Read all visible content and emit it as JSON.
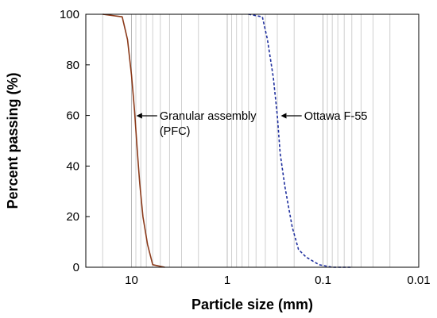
{
  "chart_data": {
    "type": "line",
    "xlabel": "Particle size (mm)",
    "ylabel": "Percent passing (%)",
    "x_scale": "log",
    "x_reversed": true,
    "xlim": [
      30,
      0.01
    ],
    "ylim": [
      0,
      100
    ],
    "x_ticks": [
      {
        "value": 10,
        "label": "10"
      },
      {
        "value": 1,
        "label": "1"
      },
      {
        "value": 0.1,
        "label": "0.1"
      },
      {
        "value": 0.01,
        "label": "0.01"
      }
    ],
    "y_ticks": [
      {
        "value": 0,
        "label": "0"
      },
      {
        "value": 20,
        "label": "20"
      },
      {
        "value": 40,
        "label": "40"
      },
      {
        "value": 60,
        "label": "60"
      },
      {
        "value": 80,
        "label": "80"
      },
      {
        "value": 100,
        "label": "100"
      }
    ],
    "grid": {
      "x": "log-minor",
      "y": false
    },
    "series": [
      {
        "name": "Granular assembly (PFC)",
        "color": "#8b3a1a",
        "style": "solid",
        "points": [
          {
            "x": 20,
            "y": 100
          },
          {
            "x": 12.5,
            "y": 99
          },
          {
            "x": 11,
            "y": 90
          },
          {
            "x": 10,
            "y": 76
          },
          {
            "x": 9.3,
            "y": 62
          },
          {
            "x": 8.7,
            "y": 46
          },
          {
            "x": 8.2,
            "y": 33
          },
          {
            "x": 7.6,
            "y": 20
          },
          {
            "x": 6.8,
            "y": 9
          },
          {
            "x": 6.0,
            "y": 1
          },
          {
            "x": 4.5,
            "y": 0
          }
        ]
      },
      {
        "name": "Ottawa F-55",
        "color": "#1f2f9e",
        "style": "dashed",
        "points": [
          {
            "x": 0.6,
            "y": 100
          },
          {
            "x": 0.43,
            "y": 99
          },
          {
            "x": 0.38,
            "y": 90
          },
          {
            "x": 0.33,
            "y": 75
          },
          {
            "x": 0.3,
            "y": 60
          },
          {
            "x": 0.28,
            "y": 45
          },
          {
            "x": 0.25,
            "y": 32
          },
          {
            "x": 0.21,
            "y": 16
          },
          {
            "x": 0.18,
            "y": 7
          },
          {
            "x": 0.15,
            "y": 4
          },
          {
            "x": 0.11,
            "y": 1
          },
          {
            "x": 0.08,
            "y": 0
          },
          {
            "x": 0.05,
            "y": 0
          }
        ]
      }
    ],
    "annotations": [
      {
        "lines": [
          "Granular assembly",
          "(PFC)"
        ],
        "target": {
          "x": 9.2,
          "y": 58
        }
      },
      {
        "lines": [
          "Ottawa F-55"
        ],
        "target": {
          "x": 0.285,
          "y": 58
        }
      }
    ]
  }
}
